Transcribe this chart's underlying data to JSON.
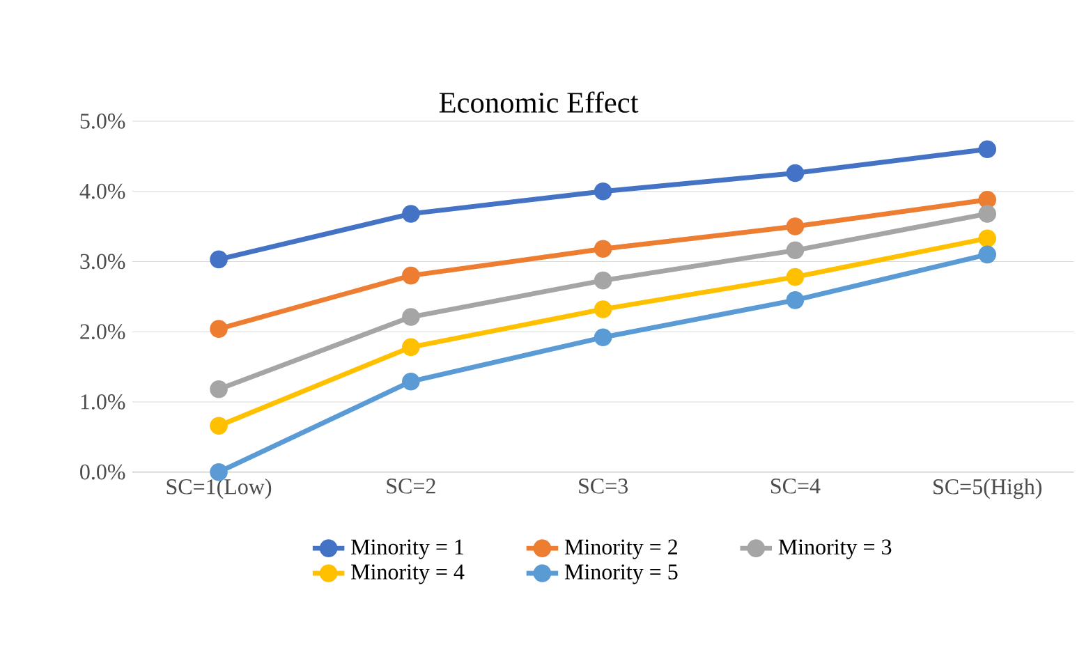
{
  "chart_data": {
    "type": "line",
    "title": "Economic Effect",
    "categories": [
      "SC=1(Low)",
      "SC=2",
      "SC=3",
      "SC=4",
      "SC=5(High)"
    ],
    "series": [
      {
        "name": "Minority = 1",
        "color": "#4472c4",
        "values": [
          3.03,
          3.68,
          4.0,
          4.26,
          4.6
        ]
      },
      {
        "name": "Minority = 2",
        "color": "#ed7d31",
        "values": [
          2.04,
          2.8,
          3.18,
          3.5,
          3.88
        ]
      },
      {
        "name": "Minority = 3",
        "color": "#a5a5a5",
        "values": [
          1.18,
          2.21,
          2.73,
          3.16,
          3.68
        ]
      },
      {
        "name": "Minority = 4",
        "color": "#ffc000",
        "values": [
          0.66,
          1.78,
          2.32,
          2.78,
          3.33
        ]
      },
      {
        "name": "Minority = 5",
        "color": "#5b9bd5",
        "values": [
          0.0,
          1.29,
          1.92,
          2.45,
          3.1
        ]
      }
    ],
    "ylim": [
      0,
      5
    ],
    "yticks": [
      {
        "value": 0,
        "label": "0.0%"
      },
      {
        "value": 1,
        "label": "1.0%"
      },
      {
        "value": 2,
        "label": "2.0%"
      },
      {
        "value": 3,
        "label": "3.0%"
      },
      {
        "value": 4,
        "label": "4.0%"
      },
      {
        "value": 5,
        "label": "5.0%"
      }
    ],
    "grid": "y",
    "legend": "bottom",
    "marker": "circle"
  }
}
